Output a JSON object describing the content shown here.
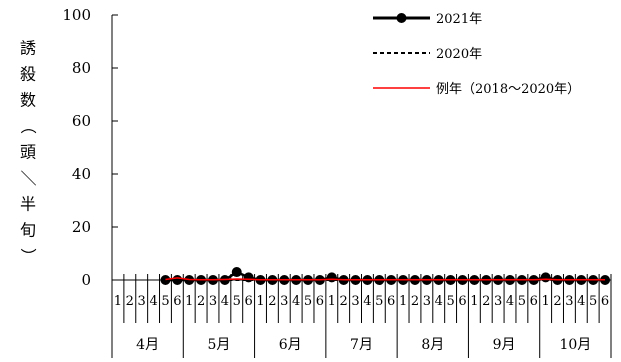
{
  "chart_data": {
    "type": "line",
    "ylabel": "誘殺数（頭／半旬）",
    "ylim": [
      0,
      100
    ],
    "yticks": [
      "0",
      "20",
      "40",
      "60",
      "80",
      "100"
    ],
    "half_labels": [
      "1",
      "2",
      "3",
      "4",
      "5",
      "6"
    ],
    "months": [
      "4月",
      "5月",
      "6月",
      "7月",
      "8月",
      "9月",
      "10月"
    ],
    "grid": false,
    "legend_position": "top-right",
    "series": [
      {
        "name": "2021年",
        "style": "line-marker",
        "color": "#000000",
        "values": [
          null,
          null,
          null,
          null,
          0,
          0,
          0,
          0,
          0,
          0,
          3,
          1,
          0,
          0,
          0,
          0,
          0,
          0,
          1,
          0,
          0,
          0,
          0,
          0,
          0,
          0,
          0,
          0,
          0,
          0,
          0,
          0,
          0,
          0,
          0,
          0,
          1,
          0,
          0,
          0,
          0,
          0
        ]
      },
      {
        "name": "2020年",
        "style": "dashed",
        "color": "#000000",
        "values": [
          null,
          null,
          null,
          null,
          0,
          0,
          0,
          0,
          0,
          0,
          0,
          0,
          0,
          0,
          0,
          0,
          0,
          0,
          0,
          0,
          0,
          0,
          0,
          0,
          0,
          0,
          0,
          0,
          0,
          0,
          0,
          0,
          0,
          0,
          0,
          0,
          0,
          0,
          0,
          0,
          0,
          0
        ]
      },
      {
        "name": "例年（2018～2020年）",
        "style": "solid",
        "color": "#ff0000",
        "values": [
          null,
          null,
          null,
          null,
          0.2,
          0.8,
          0.2,
          0.1,
          0.1,
          0.2,
          0.4,
          0.3,
          0.1,
          0.1,
          0.1,
          0.1,
          0.1,
          0.1,
          0.3,
          0.1,
          0.1,
          0.1,
          0.1,
          0.1,
          0.1,
          0.1,
          0.1,
          0.1,
          0.1,
          0.1,
          0.1,
          0.1,
          0.1,
          0.1,
          0.1,
          0.1,
          0.3,
          0.1,
          0.1,
          0.1,
          0.1,
          0.1
        ]
      }
    ]
  }
}
